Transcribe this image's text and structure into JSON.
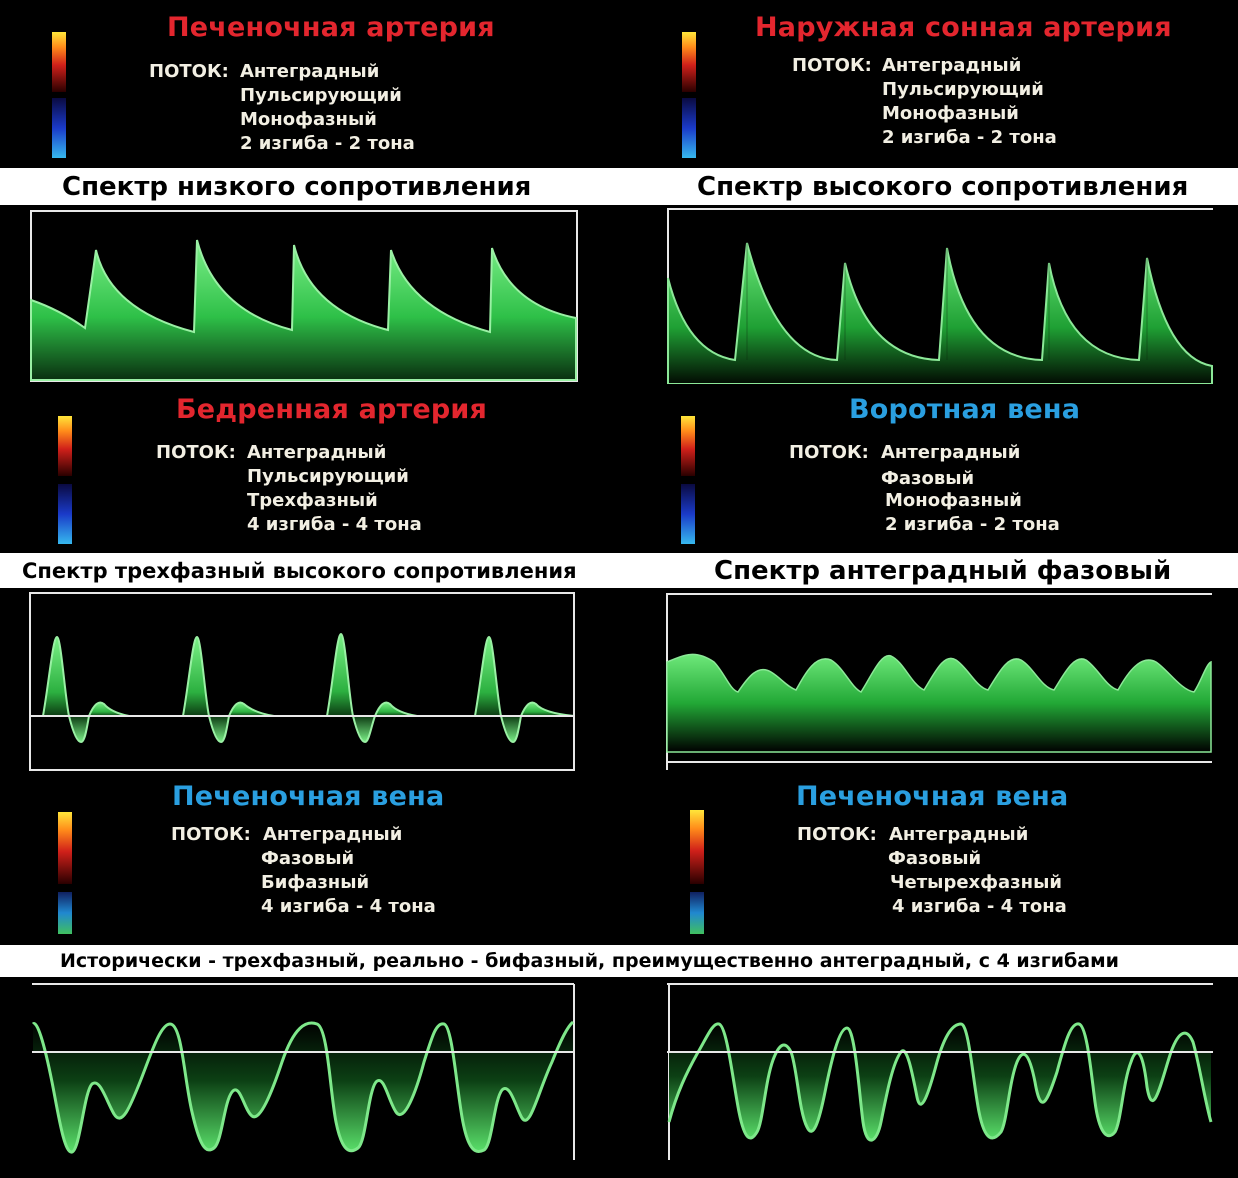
{
  "panels": [
    {
      "title": "Печеночная артерия",
      "flow_label": "ПОТОК:",
      "lines": [
        "Антеградный",
        "Пульсирующий",
        "Монофазный",
        "2 изгиба  -  2 тона"
      ]
    },
    {
      "title": "Наружная сонная артерия",
      "flow_label": "ПОТОК:",
      "lines": [
        "Антеградный",
        "Пульсирующий",
        "Монофазный",
        "2 изгиба  -  2 тона"
      ]
    },
    {
      "title": "Бедренная артерия",
      "flow_label": "ПОТОК:",
      "lines": [
        "Антеградный",
        "Пульсирующий",
        "Трехфазный",
        "4 изгиба - 4 тона"
      ]
    },
    {
      "title": "Воротная вена",
      "flow_label": "ПОТОК:",
      "lines": [
        "Антеградный",
        "Фазовый",
        "Монофазный",
        "2 изгиба - 2 тона"
      ]
    },
    {
      "title": "Печеночная вена",
      "flow_label": "ПОТОК:",
      "lines": [
        "Антеградный",
        "Фазовый",
        "Бифазный",
        "4 изгиба - 4 тона"
      ]
    },
    {
      "title": "Печеночная вена",
      "flow_label": "ПОТОК:",
      "lines": [
        "Антеградный",
        "Фазовый",
        "Четырехфазный",
        "4 изгиба - 4 тона"
      ]
    }
  ],
  "captions": {
    "low_resistance": "Спектр низкого сопротивления",
    "high_resistance": "Спектр высокого сопротивления",
    "triphasic": "Спектр трехфазный высокого сопротивления",
    "antegrade_phasic": "Спектр антеградный фазовый",
    "historical": "Исторически - трехфазный, реально - бифазный, преимущественно антеградный, с 4 изгибами"
  },
  "colors": {
    "artery_title": "#e3262e",
    "vein_title": "#2a9fe0",
    "waveform_green": "#4fd860"
  }
}
